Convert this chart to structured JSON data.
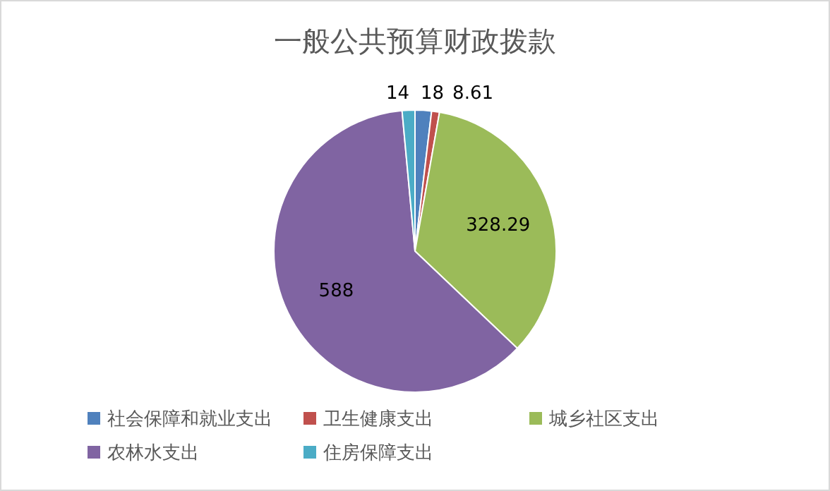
{
  "chart_data": {
    "type": "pie",
    "title": "一般公共预算财政拨款",
    "categories": [
      "社会保障和就业支出",
      "卫生健康支出",
      "城乡社区支出",
      "农林水支出",
      "住房保障支出"
    ],
    "values": [
      18,
      8.61,
      328.29,
      588,
      14
    ],
    "colors": [
      "#4f81bd",
      "#c0504d",
      "#9bbb59",
      "#8064a2",
      "#4bacc6"
    ],
    "data_labels": true,
    "legend": "bottom"
  }
}
